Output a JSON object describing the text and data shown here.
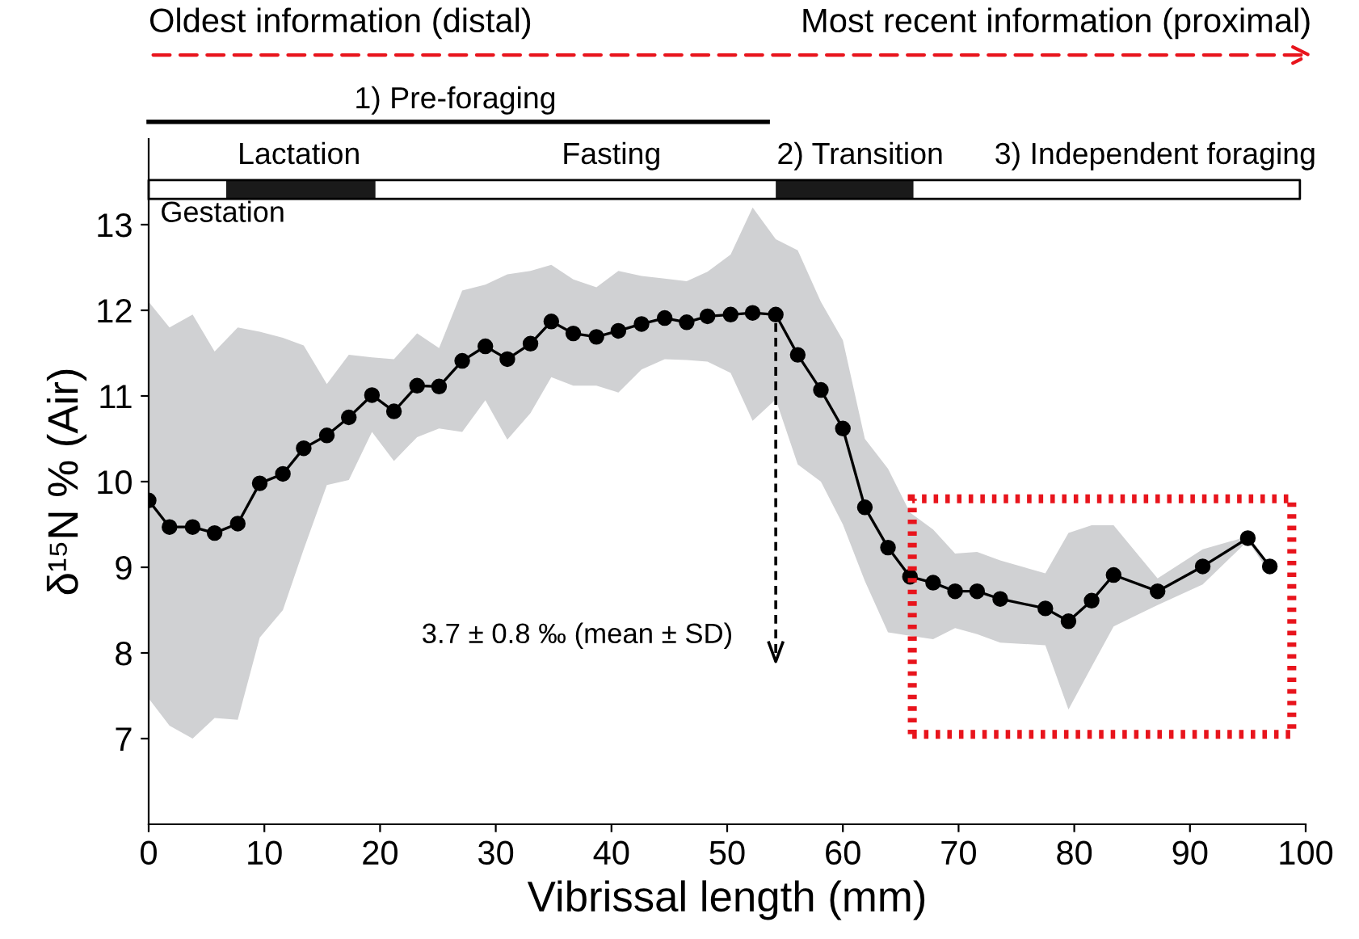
{
  "chart_data": {
    "type": "line",
    "xlabel": "Vibrissal length (mm)",
    "ylabel": "δ¹⁵N % (Air)",
    "xlim": [
      0,
      100
    ],
    "xticks": [
      0,
      10,
      20,
      30,
      40,
      50,
      60,
      70,
      80,
      90,
      100
    ],
    "ylim": [
      6,
      14
    ],
    "yticks": [
      7,
      8,
      9,
      10,
      11,
      12,
      13
    ],
    "grid": false,
    "legend": false,
    "marker": "circle",
    "line_style": "solid",
    "series": [
      {
        "color": "#000000",
        "x": [
          0,
          1.8,
          3.8,
          5.7,
          7.7,
          9.6,
          11.6,
          13.4,
          15.4,
          17.3,
          19.3,
          21.2,
          23.2,
          25.1,
          27.1,
          29.1,
          31.0,
          33.0,
          34.8,
          36.7,
          38.7,
          40.6,
          42.6,
          44.6,
          46.5,
          48.3,
          50.3,
          52.2,
          54.2,
          56.1,
          58.1,
          60.0,
          61.9,
          63.9,
          65.8,
          67.8,
          69.7,
          71.6,
          73.6,
          77.5,
          79.5,
          81.5,
          83.4,
          87.2,
          91.1,
          95.0,
          96.9
        ],
        "values": [
          9.78,
          9.47,
          9.47,
          9.4,
          9.51,
          9.98,
          10.09,
          10.39,
          10.54,
          10.75,
          11.01,
          10.82,
          11.12,
          11.11,
          11.41,
          11.58,
          11.43,
          11.61,
          11.87,
          11.73,
          11.69,
          11.76,
          11.84,
          11.91,
          11.86,
          11.93,
          11.95,
          11.97,
          11.95,
          11.48,
          11.07,
          10.62,
          9.7,
          9.23,
          8.89,
          8.82,
          8.72,
          8.72,
          8.63,
          8.52,
          8.37,
          8.61,
          8.91,
          8.72,
          9.01,
          9.34,
          9.01
        ],
        "upper": [
          12.1,
          11.8,
          11.95,
          11.52,
          11.8,
          11.75,
          11.68,
          11.59,
          11.14,
          11.48,
          11.45,
          11.43,
          11.73,
          11.56,
          12.23,
          12.3,
          12.42,
          12.46,
          12.53,
          12.36,
          12.27,
          12.46,
          12.4,
          12.37,
          12.34,
          12.45,
          12.65,
          13.2,
          12.83,
          12.7,
          12.1,
          11.65,
          10.5,
          10.15,
          9.64,
          9.44,
          9.16,
          9.18,
          9.08,
          8.93,
          9.4,
          9.49,
          9.49,
          8.87,
          9.21,
          9.36,
          8.99
        ],
        "lower": [
          7.47,
          7.15,
          7.0,
          7.24,
          7.22,
          8.18,
          8.5,
          9.21,
          9.96,
          10.02,
          10.58,
          10.24,
          10.52,
          10.62,
          10.58,
          10.95,
          10.49,
          10.8,
          11.22,
          11.12,
          11.12,
          11.04,
          11.31,
          11.43,
          11.42,
          11.4,
          11.27,
          10.71,
          10.96,
          10.2,
          10.0,
          9.5,
          8.84,
          8.24,
          8.2,
          8.16,
          8.29,
          8.22,
          8.12,
          8.09,
          7.34,
          7.84,
          8.31,
          8.56,
          8.8,
          9.31,
          8.93
        ]
      }
    ],
    "annotations": [
      "Oldest information (distal)",
      "Most recent information (proximal)",
      "1) Pre-foraging",
      "Lactation",
      "Fasting",
      "2) Transition",
      "3) Independent foraging",
      "Gestation",
      "3.7 ± 0.8 ‰ (mean ± SD)"
    ]
  }
}
